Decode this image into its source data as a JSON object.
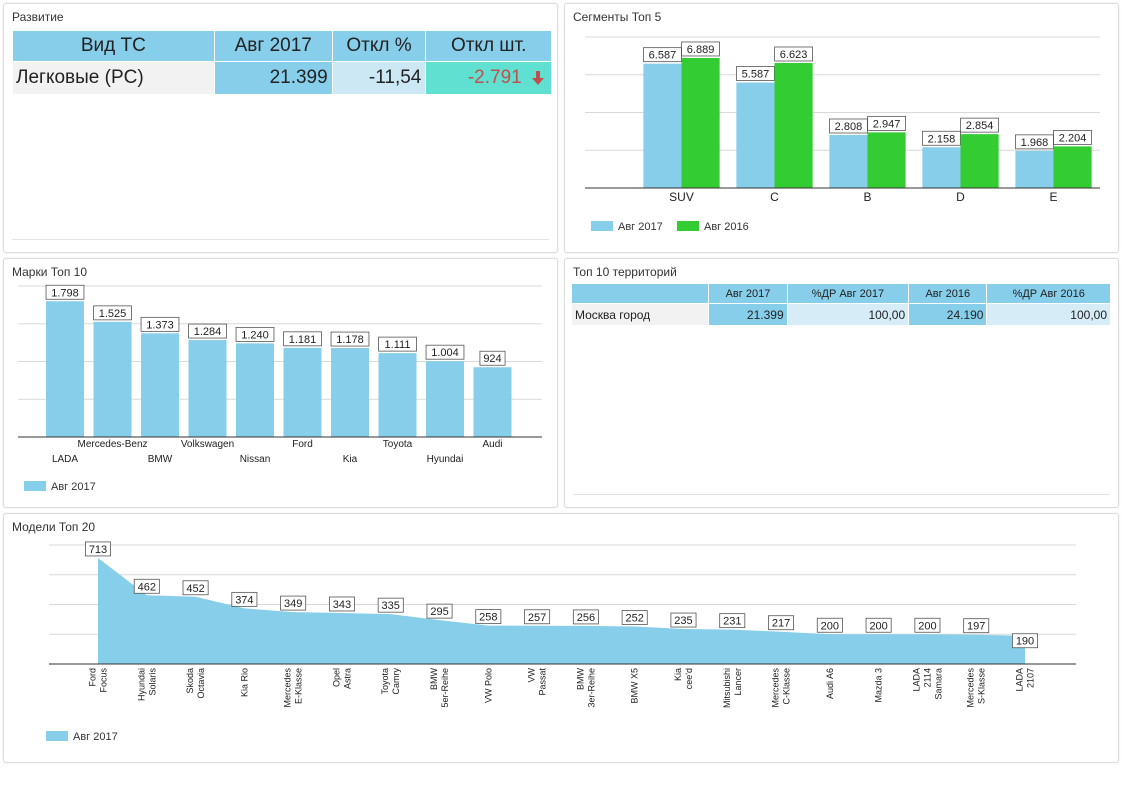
{
  "panels": {
    "development_title": "Развитие",
    "segments_title": "Сегменты Топ 5",
    "brands_title": "Марки Топ 10",
    "territories_title": "Топ 10 территорий",
    "models_title": "Модели Топ 20"
  },
  "kpi_table": {
    "headers": [
      "Вид ТС",
      "Авг 2017",
      "Откл %",
      "Откл шт."
    ],
    "row": {
      "type": "Легковые (PC)",
      "aug2017": "21.399",
      "dev_pct": "-11,54",
      "dev_units": "-2.791"
    },
    "colors": {
      "header": "#87ceeb",
      "value": "#87ceeb",
      "pct": "#cce8f4",
      "units": "#5fe0d0",
      "negative": "#c0504d"
    }
  },
  "territory_table": {
    "headers": [
      "",
      "Авг 2017",
      "%ДР Авг 2017",
      "Авг 2016",
      "%ДР Авг 2016"
    ],
    "rows": [
      {
        "name": "Москва город",
        "aug2017": "21.399",
        "dr2017": "100,00",
        "aug2016": "24.190",
        "dr2016": "100,00"
      }
    ]
  },
  "chart_data": [
    {
      "type": "bar",
      "categories": [
        "SUV",
        "C",
        "B",
        "D",
        "E"
      ],
      "series": [
        {
          "name": "Авг 2017",
          "values": [
            6587,
            5587,
            2808,
            2158,
            1968
          ],
          "labels": [
            "6.587",
            "5.587",
            "2.808",
            "2.158",
            "1.968"
          ],
          "color": "#87ceeb"
        },
        {
          "name": "Авг 2016",
          "values": [
            6889,
            6623,
            2947,
            2854,
            2204
          ],
          "labels": [
            "6.889",
            "6.623",
            "2.947",
            "2.854",
            "2.204"
          ],
          "color": "#33cc33"
        }
      ],
      "ylim": [
        0,
        8000
      ],
      "legend": "bottom-left",
      "grid": true
    },
    {
      "type": "bar",
      "categories": [
        "LADA",
        "Mercedes-Benz",
        "BMW",
        "Volkswagen",
        "Nissan",
        "Ford",
        "Kia",
        "Toyota",
        "Hyundai",
        "Audi"
      ],
      "series": [
        {
          "name": "Авг 2017",
          "values": [
            1798,
            1525,
            1373,
            1284,
            1240,
            1181,
            1178,
            1111,
            1004,
            924
          ],
          "labels": [
            "1.798",
            "1.525",
            "1.373",
            "1.284",
            "1.240",
            "1.181",
            "1.178",
            "1.111",
            "1.004",
            "924"
          ],
          "color": "#87ceeb"
        }
      ],
      "ylim": [
        0,
        2000
      ],
      "legend": "bottom-left",
      "grid": true
    },
    {
      "type": "area",
      "categories": [
        [
          "Ford",
          "Focus"
        ],
        [
          "Hyundai",
          "Solaris"
        ],
        [
          "Skoda",
          "Octavia"
        ],
        [
          "Kia Rio"
        ],
        [
          "Mercedes",
          "E-Klasse"
        ],
        [
          "Opel",
          "Astra"
        ],
        [
          "Toyota",
          "Camry"
        ],
        [
          "BMW",
          "5er-Reihe"
        ],
        [
          "VW Polo"
        ],
        [
          "VW",
          "Passat"
        ],
        [
          "BMW",
          "3er-Reihe"
        ],
        [
          "BMW X5"
        ],
        [
          "Kia",
          "cee'd"
        ],
        [
          "Mitsubishi",
          "Lancer"
        ],
        [
          "Mercedes",
          "C-Klasse"
        ],
        [
          "Audi A6"
        ],
        [
          "Mazda 3"
        ],
        [
          "LADA",
          "2114",
          "Samara"
        ],
        [
          "Mercedes",
          "S-Klasse"
        ],
        [
          "LADA",
          "2107"
        ]
      ],
      "series": [
        {
          "name": "Авг 2017",
          "values": [
            713,
            462,
            452,
            374,
            349,
            343,
            335,
            295,
            258,
            257,
            256,
            252,
            235,
            231,
            217,
            200,
            200,
            200,
            197,
            190
          ],
          "color": "#87ceeb"
        }
      ],
      "ylim": [
        0,
        800
      ],
      "legend": "bottom-left",
      "grid": true
    }
  ]
}
